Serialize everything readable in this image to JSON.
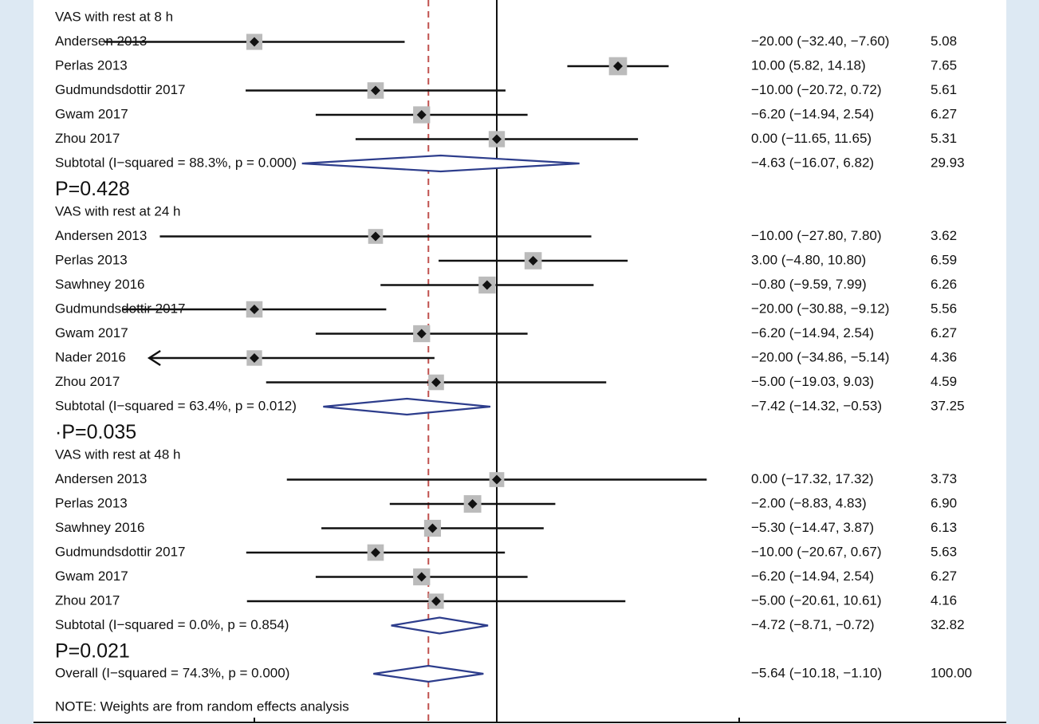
{
  "chart_data": {
    "type": "forest",
    "title": "",
    "xlabel": "",
    "xlim": [
      -50,
      50
    ],
    "null_line": 0,
    "overall_line": -5.64,
    "colors": {
      "diamond": "#2d3d8c",
      "dashed": "#c0504d",
      "marker_box": "#bbbbbb",
      "line": "#111111",
      "panel_bg": "#dde9f3"
    },
    "groups": [
      {
        "heading": "VAS with rest at 8 h",
        "studies": [
          {
            "name": "Andersen 2013",
            "est": -20.0,
            "lo": -32.4,
            "hi": -7.6,
            "ci_text": "−20.00 (−32.40, −7.60)",
            "weight": "5.08"
          },
          {
            "name": "Perlas 2013",
            "est": 10.0,
            "lo": 5.82,
            "hi": 14.18,
            "ci_text": "10.00 (5.82, 14.18)",
            "weight": "7.65"
          },
          {
            "name": "Gudmundsdottir 2017",
            "est": -10.0,
            "lo": -20.72,
            "hi": 0.72,
            "ci_text": "−10.00 (−20.72, 0.72)",
            "weight": "5.61"
          },
          {
            "name": "Gwam 2017",
            "est": -6.2,
            "lo": -14.94,
            "hi": 2.54,
            "ci_text": "−6.20 (−14.94, 2.54)",
            "weight": "6.27"
          },
          {
            "name": "Zhou 2017",
            "est": 0.0,
            "lo": -11.65,
            "hi": 11.65,
            "ci_text": "0.00 (−11.65, 11.65)",
            "weight": "5.31"
          }
        ],
        "subtotal": {
          "label": "Subtotal  (I−squared = 88.3%, p = 0.000)",
          "est": -4.63,
          "lo": -16.07,
          "hi": 6.82,
          "ci_text": "−4.63 (−16.07, 6.82)",
          "weight": "29.93"
        },
        "p_label": "P=0.428"
      },
      {
        "heading": "VAS with rest at 24 h",
        "studies": [
          {
            "name": "Andersen 2013",
            "est": -10.0,
            "lo": -27.8,
            "hi": 7.8,
            "ci_text": "−10.00 (−27.80, 7.80)",
            "weight": "3.62"
          },
          {
            "name": "Perlas 2013",
            "est": 3.0,
            "lo": -4.8,
            "hi": 10.8,
            "ci_text": "3.00 (−4.80, 10.80)",
            "weight": "6.59"
          },
          {
            "name": "Sawhney 2016",
            "est": -0.8,
            "lo": -9.59,
            "hi": 7.99,
            "ci_text": "−0.80 (−9.59, 7.99)",
            "weight": "6.26"
          },
          {
            "name": "Gudmundsdottir 2017",
            "est": -20.0,
            "lo": -30.88,
            "hi": -9.12,
            "ci_text": "−20.00 (−30.88, −9.12)",
            "weight": "5.56"
          },
          {
            "name": "Gwam 2017",
            "est": -6.2,
            "lo": -14.94,
            "hi": 2.54,
            "ci_text": "−6.20 (−14.94, 2.54)",
            "weight": "6.27"
          },
          {
            "name": "Nader 2016",
            "est": -20.0,
            "lo": -34.86,
            "hi": -5.14,
            "ci_text": "−20.00 (−34.86, −5.14)",
            "weight": "4.36",
            "arrow_left": true
          },
          {
            "name": "Zhou 2017",
            "est": -5.0,
            "lo": -19.03,
            "hi": 9.03,
            "ci_text": "−5.00 (−19.03, 9.03)",
            "weight": "4.59"
          }
        ],
        "subtotal": {
          "label": "Subtotal  (I−squared = 63.4%, p = 0.012)",
          "est": -7.42,
          "lo": -14.32,
          "hi": -0.53,
          "ci_text": "−7.42 (−14.32, −0.53)",
          "weight": "37.25"
        },
        "p_label": "·P=0.035"
      },
      {
        "heading": "VAS with rest at 48 h",
        "studies": [
          {
            "name": "Andersen 2013",
            "est": 0.0,
            "lo": -17.32,
            "hi": 17.32,
            "ci_text": "0.00 (−17.32, 17.32)",
            "weight": "3.73"
          },
          {
            "name": "Perlas 2013",
            "est": -2.0,
            "lo": -8.83,
            "hi": 4.83,
            "ci_text": "−2.00 (−8.83, 4.83)",
            "weight": "6.90"
          },
          {
            "name": "Sawhney 2016",
            "est": -5.3,
            "lo": -14.47,
            "hi": 3.87,
            "ci_text": "−5.30 (−14.47, 3.87)",
            "weight": "6.13"
          },
          {
            "name": "Gudmundsdottir 2017",
            "est": -10.0,
            "lo": -20.67,
            "hi": 0.67,
            "ci_text": "−10.00 (−20.67, 0.67)",
            "weight": "5.63"
          },
          {
            "name": "Gwam 2017",
            "est": -6.2,
            "lo": -14.94,
            "hi": 2.54,
            "ci_text": "−6.20 (−14.94, 2.54)",
            "weight": "6.27"
          },
          {
            "name": "Zhou 2017",
            "est": -5.0,
            "lo": -20.61,
            "hi": 10.61,
            "ci_text": "−5.00 (−20.61, 10.61)",
            "weight": "4.16"
          }
        ],
        "subtotal": {
          "label": "Subtotal  (I−squared = 0.0%, p = 0.854)",
          "est": -4.72,
          "lo": -8.71,
          "hi": -0.72,
          "ci_text": "−4.72 (−8.71, −0.72)",
          "weight": "32.82"
        },
        "p_label": "P=0.021"
      }
    ],
    "overall": {
      "label": "Overall  (I−squared = 74.3%, p = 0.000)",
      "est": -5.64,
      "lo": -10.18,
      "hi": -1.1,
      "ci_text": "−5.64 (−10.18, −1.10)",
      "weight": "100.00"
    },
    "note": "NOTE: Weights are from random effects analysis"
  }
}
